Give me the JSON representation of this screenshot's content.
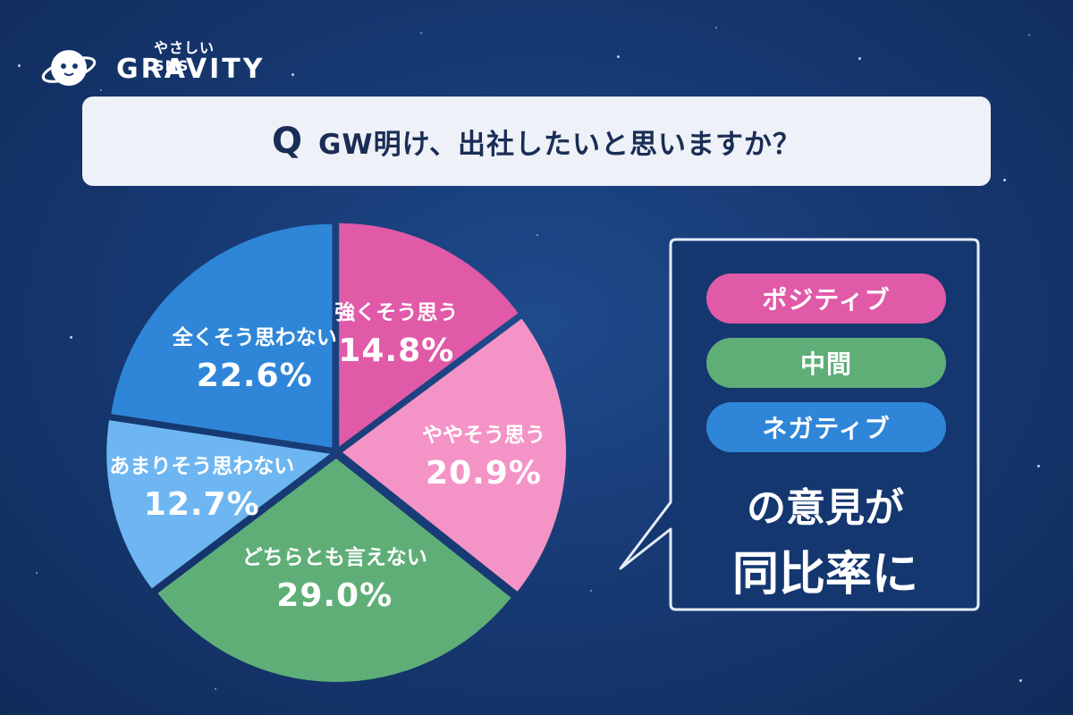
{
  "brand": {
    "tagline": "やさしいSNS",
    "name": "GRAVITY"
  },
  "question": {
    "mark": "Q",
    "text": "GW明け、出社したいと思いますか？"
  },
  "chart_data": {
    "type": "pie",
    "slices": [
      {
        "label": "強くそう思う",
        "value": 14.8,
        "display": "14.8%",
        "color": "#e05aa8"
      },
      {
        "label": "ややそう思う",
        "value": 20.9,
        "display": "20.9%",
        "color": "#f494c6"
      },
      {
        "label": "どちらとも言えない",
        "value": 29.0,
        "display": "29.0%",
        "color": "#5fae78"
      },
      {
        "label": "あまりそう思わない",
        "value": 12.7,
        "display": "12.7%",
        "color": "#6eb6f2"
      },
      {
        "label": "全くそう思わない",
        "value": 22.6,
        "display": "22.6%",
        "color": "#2f86d8"
      }
    ]
  },
  "callout": {
    "categories": [
      {
        "label": "ポジティブ",
        "color": "#e05aa8"
      },
      {
        "label": "中間",
        "color": "#5fae78"
      },
      {
        "label": "ネガティブ",
        "color": "#2f86d8"
      }
    ],
    "line1": "の意見が",
    "line2": "同比率に"
  }
}
